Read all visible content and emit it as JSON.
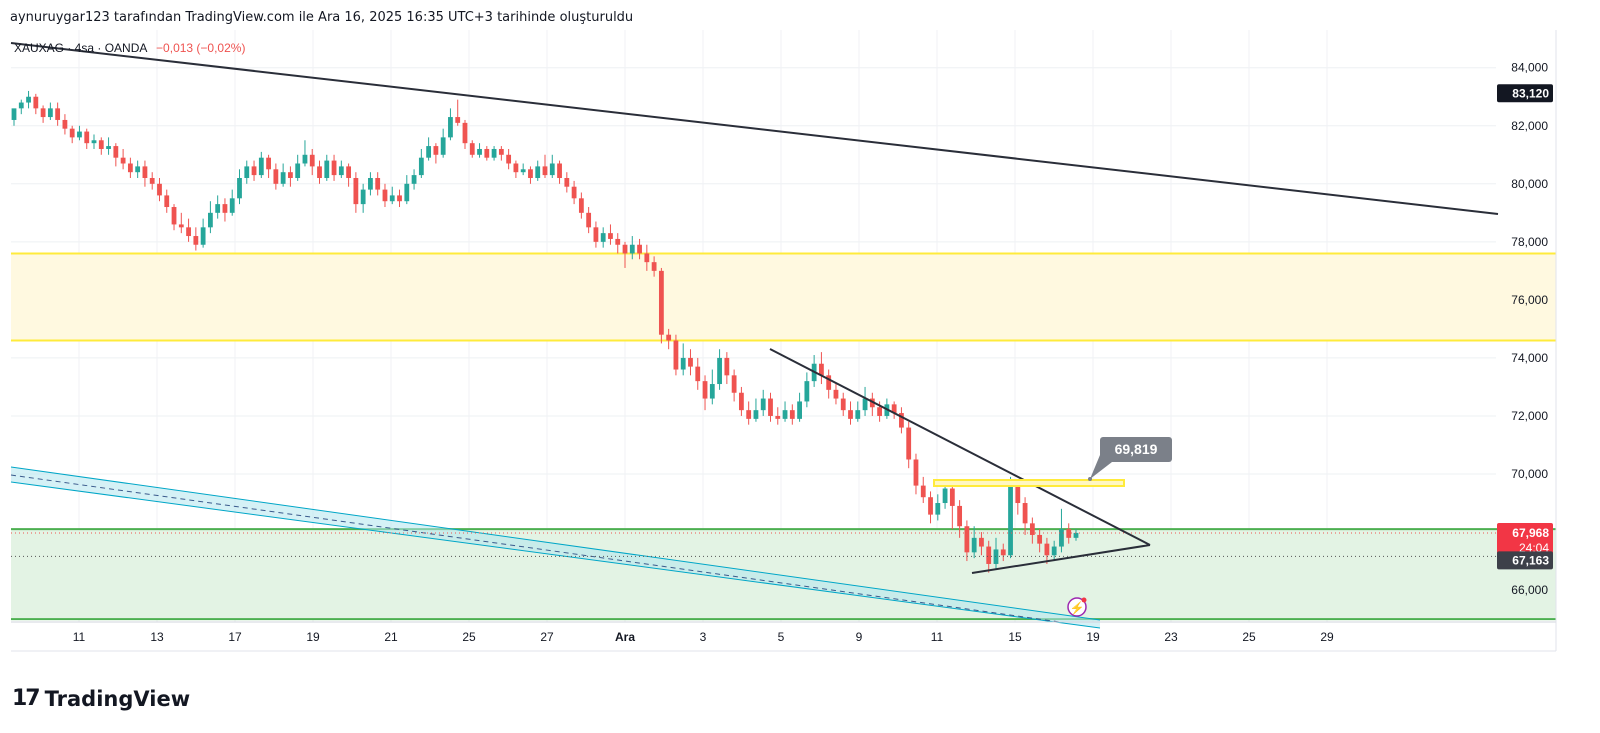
{
  "header": {
    "caption": "aynuruygar123 tarafından TradingView.com ile Ara 16, 2025 16:35 UTC+3 tarihinde oluşturuldu"
  },
  "symbol": {
    "name": "XAUXAG · 4sa · OANDA",
    "change": "−0,013 (−0,02%)"
  },
  "footer": {
    "brand": "TradingView"
  },
  "colors": {
    "up": "#26a69a",
    "down": "#ef5350",
    "yellow_zone": "#ffeb3b",
    "green_zone": "#4caf50",
    "channel": "#00a6c7",
    "trend": "#2a2e39"
  },
  "chart_data": {
    "type": "candlestick",
    "ylim": [
      64.9,
      85.3
    ],
    "y_ticks": [
      "84,000",
      "82,000",
      "80,000",
      "78,000",
      "76,000",
      "74,000",
      "72,000",
      "70,000",
      "66,000"
    ],
    "x_ticks": [
      "11",
      "13",
      "17",
      "19",
      "21",
      "25",
      "27",
      "Ara",
      "3",
      "5",
      "9",
      "11",
      "15",
      "19",
      "23",
      "25",
      "29"
    ],
    "x_bold_tick": "Ara",
    "price_labels": {
      "high_marker": "83,120",
      "current": "67,968",
      "countdown": "24:04",
      "low_marker": "67,163"
    },
    "annotation": {
      "text": "69,819"
    },
    "zones": [
      {
        "name": "yellow-resistance-zone",
        "from": 74.6,
        "to": 77.6
      },
      {
        "name": "green-support-zone",
        "from": 65.0,
        "to": 68.1
      }
    ],
    "candles": [
      [
        82.2,
        82.6,
        82.4,
        82.0
      ],
      [
        82.6,
        82.8,
        82.9,
        82.4
      ],
      [
        82.8,
        83.0,
        83.2,
        82.6
      ],
      [
        83.0,
        82.6,
        83.1,
        82.4
      ],
      [
        82.6,
        82.3,
        82.7,
        82.1
      ],
      [
        82.3,
        82.6,
        82.8,
        82.2
      ],
      [
        82.6,
        82.2,
        82.8,
        82.0
      ],
      [
        82.2,
        81.9,
        82.4,
        81.7
      ],
      [
        81.9,
        81.6,
        82.0,
        81.4
      ],
      [
        81.6,
        81.8,
        82.0,
        81.5
      ],
      [
        81.8,
        81.4,
        81.9,
        81.2
      ],
      [
        81.4,
        81.5,
        81.7,
        81.2
      ],
      [
        81.5,
        81.2,
        81.6,
        81.0
      ],
      [
        81.2,
        81.3,
        81.6,
        81.0
      ],
      [
        81.3,
        80.9,
        81.4,
        80.6
      ],
      [
        80.9,
        80.7,
        81.2,
        80.5
      ],
      [
        80.7,
        80.4,
        80.9,
        80.2
      ],
      [
        80.4,
        80.6,
        80.8,
        80.2
      ],
      [
        80.6,
        80.2,
        80.8,
        79.9
      ],
      [
        80.2,
        80.0,
        80.4,
        79.8
      ],
      [
        80.0,
        79.6,
        80.2,
        79.4
      ],
      [
        79.6,
        79.2,
        79.8,
        79.0
      ],
      [
        79.2,
        78.6,
        79.3,
        78.4
      ],
      [
        78.6,
        78.5,
        79.0,
        78.3
      ],
      [
        78.5,
        78.2,
        78.8,
        78.0
      ],
      [
        78.2,
        77.9,
        78.5,
        77.7
      ],
      [
        77.9,
        78.5,
        78.8,
        77.8
      ],
      [
        78.5,
        79.0,
        79.4,
        78.3
      ],
      [
        79.0,
        79.3,
        79.6,
        78.8
      ],
      [
        79.3,
        79.0,
        79.5,
        78.7
      ],
      [
        79.0,
        79.5,
        79.8,
        78.9
      ],
      [
        79.5,
        80.2,
        80.5,
        79.3
      ],
      [
        80.2,
        80.6,
        80.8,
        80.0
      ],
      [
        80.6,
        80.3,
        80.8,
        80.1
      ],
      [
        80.3,
        80.9,
        81.1,
        80.2
      ],
      [
        80.9,
        80.5,
        81.0,
        80.2
      ],
      [
        80.5,
        80.0,
        80.7,
        79.8
      ],
      [
        80.0,
        80.4,
        80.7,
        79.9
      ],
      [
        80.4,
        80.2,
        80.6,
        79.9
      ],
      [
        80.2,
        80.7,
        81.0,
        80.1
      ],
      [
        80.7,
        81.0,
        81.5,
        80.6
      ],
      [
        81.0,
        80.6,
        81.2,
        80.3
      ],
      [
        80.6,
        80.2,
        80.8,
        80.0
      ],
      [
        80.2,
        80.8,
        81.0,
        80.1
      ],
      [
        80.8,
        80.3,
        81.0,
        80.1
      ],
      [
        80.3,
        80.6,
        80.8,
        80.2
      ],
      [
        80.6,
        80.2,
        80.7,
        79.9
      ],
      [
        80.2,
        79.3,
        80.4,
        79.0
      ],
      [
        79.3,
        79.8,
        80.0,
        79.0
      ],
      [
        79.8,
        80.2,
        80.4,
        79.6
      ],
      [
        80.2,
        79.8,
        80.4,
        79.6
      ],
      [
        79.8,
        79.4,
        80.0,
        79.2
      ],
      [
        79.4,
        79.6,
        79.9,
        79.3
      ],
      [
        79.6,
        79.4,
        79.8,
        79.2
      ],
      [
        79.4,
        80.0,
        80.3,
        79.3
      ],
      [
        80.0,
        80.3,
        80.5,
        79.8
      ],
      [
        80.3,
        80.9,
        81.2,
        80.2
      ],
      [
        80.9,
        81.3,
        81.6,
        80.8
      ],
      [
        81.3,
        81.0,
        81.4,
        80.7
      ],
      [
        81.0,
        81.6,
        81.9,
        80.9
      ],
      [
        81.6,
        82.3,
        82.6,
        81.5
      ],
      [
        82.3,
        82.1,
        82.9,
        82.0
      ],
      [
        82.1,
        81.4,
        82.2,
        81.2
      ],
      [
        81.4,
        81.0,
        81.5,
        80.9
      ],
      [
        81.0,
        81.2,
        81.4,
        80.9
      ],
      [
        81.2,
        80.9,
        81.3,
        80.8
      ],
      [
        80.9,
        81.2,
        81.3,
        80.8
      ],
      [
        81.2,
        81.0,
        81.3,
        80.8
      ],
      [
        81.0,
        80.7,
        81.2,
        80.5
      ],
      [
        80.7,
        80.4,
        80.8,
        80.2
      ],
      [
        80.4,
        80.5,
        80.7,
        80.3
      ],
      [
        80.5,
        80.2,
        80.6,
        80.0
      ],
      [
        80.2,
        80.6,
        80.8,
        80.1
      ],
      [
        80.6,
        80.3,
        81.0,
        80.2
      ],
      [
        80.3,
        80.7,
        81.0,
        80.2
      ],
      [
        80.7,
        80.2,
        80.8,
        80.0
      ],
      [
        80.2,
        79.9,
        80.4,
        79.7
      ],
      [
        79.9,
        79.5,
        80.1,
        79.3
      ],
      [
        79.5,
        79.0,
        79.7,
        78.8
      ],
      [
        79.0,
        78.5,
        79.2,
        78.3
      ],
      [
        78.5,
        78.0,
        78.7,
        77.8
      ],
      [
        78.0,
        78.3,
        78.5,
        77.8
      ],
      [
        78.3,
        78.1,
        78.6,
        77.9
      ],
      [
        78.1,
        77.9,
        78.3,
        77.6
      ],
      [
        77.9,
        77.6,
        78.0,
        77.1
      ],
      [
        77.6,
        77.9,
        78.2,
        77.4
      ],
      [
        77.9,
        77.6,
        78.1,
        77.4
      ],
      [
        77.6,
        77.3,
        77.9,
        77.0
      ],
      [
        77.3,
        77.0,
        77.5,
        76.8
      ],
      [
        77.0,
        74.8,
        77.1,
        74.5
      ],
      [
        74.8,
        74.6,
        75.0,
        74.3
      ],
      [
        74.6,
        73.6,
        74.8,
        73.4
      ],
      [
        73.6,
        74.0,
        74.5,
        73.4
      ],
      [
        74.0,
        73.7,
        74.3,
        73.4
      ],
      [
        73.7,
        73.2,
        74.0,
        72.9
      ],
      [
        73.2,
        72.6,
        73.4,
        72.2
      ],
      [
        72.6,
        73.1,
        73.6,
        72.4
      ],
      [
        73.1,
        74.0,
        74.3,
        72.9
      ],
      [
        74.0,
        73.4,
        74.2,
        73.1
      ],
      [
        73.4,
        72.8,
        73.6,
        72.5
      ],
      [
        72.8,
        72.2,
        73.0,
        72.0
      ],
      [
        72.2,
        71.9,
        72.5,
        71.7
      ],
      [
        71.9,
        72.2,
        72.6,
        71.8
      ],
      [
        72.2,
        72.6,
        72.9,
        72.0
      ],
      [
        72.6,
        72.0,
        72.8,
        71.8
      ],
      [
        72.0,
        71.9,
        72.3,
        71.7
      ],
      [
        71.9,
        72.2,
        72.5,
        71.8
      ],
      [
        72.2,
        71.9,
        72.4,
        71.7
      ],
      [
        71.9,
        72.5,
        72.8,
        71.8
      ],
      [
        72.5,
        73.2,
        73.5,
        72.3
      ],
      [
        73.2,
        73.8,
        74.1,
        73.0
      ],
      [
        73.8,
        73.4,
        74.2,
        73.1
      ],
      [
        73.4,
        72.9,
        73.6,
        72.6
      ],
      [
        72.9,
        72.6,
        73.1,
        72.4
      ],
      [
        72.6,
        72.2,
        72.8,
        72.0
      ],
      [
        72.2,
        71.9,
        72.5,
        71.7
      ],
      [
        71.9,
        72.2,
        72.5,
        71.8
      ],
      [
        72.2,
        72.6,
        73.0,
        72.0
      ],
      [
        72.6,
        72.3,
        72.8,
        72.0
      ],
      [
        72.3,
        72.0,
        72.5,
        71.8
      ],
      [
        72.0,
        72.4,
        72.6,
        71.9
      ],
      [
        72.4,
        72.1,
        72.5,
        71.9
      ],
      [
        72.1,
        71.6,
        72.3,
        71.4
      ],
      [
        71.6,
        70.5,
        71.8,
        70.2
      ],
      [
        70.5,
        69.6,
        70.7,
        69.3
      ],
      [
        69.6,
        69.2,
        69.9,
        69.0
      ],
      [
        69.2,
        68.6,
        69.4,
        68.3
      ],
      [
        68.6,
        69.0,
        69.3,
        68.4
      ],
      [
        69.0,
        69.5,
        69.8,
        68.8
      ],
      [
        69.5,
        68.9,
        69.6,
        68.1
      ],
      [
        68.9,
        68.2,
        69.1,
        67.8
      ],
      [
        68.2,
        67.3,
        68.4,
        67.0
      ],
      [
        67.3,
        67.8,
        68.2,
        67.1
      ],
      [
        67.8,
        67.5,
        68.0,
        67.2
      ],
      [
        67.5,
        66.9,
        67.7,
        66.6
      ],
      [
        66.9,
        67.4,
        67.8,
        66.7
      ],
      [
        67.4,
        67.2,
        67.6,
        67.0
      ],
      [
        67.2,
        69.7,
        69.9,
        67.1
      ],
      [
        69.7,
        69.0,
        69.8,
        68.6
      ],
      [
        69.0,
        68.3,
        69.2,
        67.9
      ],
      [
        68.3,
        67.9,
        68.5,
        67.6
      ],
      [
        67.9,
        67.6,
        68.1,
        67.3
      ],
      [
        67.6,
        67.2,
        67.8,
        66.9
      ],
      [
        67.2,
        67.5,
        67.7,
        67.0
      ],
      [
        67.5,
        68.1,
        68.8,
        67.3
      ],
      [
        68.1,
        67.8,
        68.3,
        67.6
      ],
      [
        67.8,
        67.97,
        68.1,
        67.7
      ]
    ]
  }
}
